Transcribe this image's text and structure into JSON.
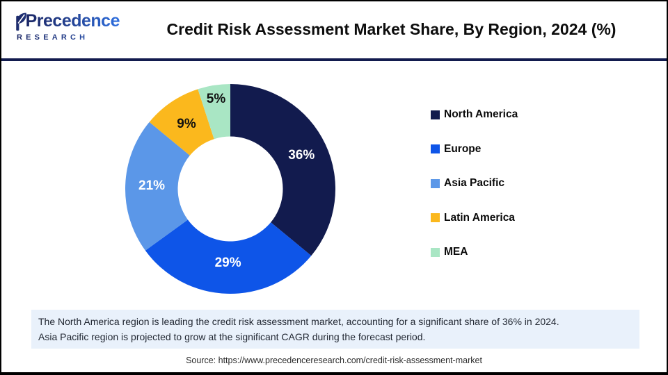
{
  "brand": {
    "name_top": "Precedence",
    "name_bottom": "RESEARCH"
  },
  "header": {
    "title": "Credit Risk Assessment Market Share, By Region, 2024 (%)"
  },
  "chart_data": {
    "type": "pie",
    "subtype": "donut",
    "title": "Credit Risk Assessment Market Share, By Region, 2024 (%)",
    "categories": [
      "North America",
      "Europe",
      "Asia Pacific",
      "Latin America",
      "MEA"
    ],
    "values": [
      36,
      29,
      21,
      9,
      5
    ],
    "unit": "%",
    "colors": [
      "#121b4e",
      "#0e55e8",
      "#5b97e8",
      "#fbb81d",
      "#a9e6c4"
    ],
    "label_colors": [
      "#ffffff",
      "#ffffff",
      "#ffffff",
      "#101010",
      "#101010"
    ],
    "label_radii": [
      113,
      107,
      113,
      112,
      131
    ],
    "start_angle_deg": 0,
    "direction": "clockwise",
    "inner_radius_ratio": 0.5,
    "legend_position": "right"
  },
  "note": {
    "line1": "The North America region is leading the credit risk assessment market, accounting for a significant share of 36% in 2024.",
    "line2": "Asia Pacific region is projected to grow at the significant CAGR during the forecast period."
  },
  "source": "Source: https://www.precedenceresearch.com/credit-risk-assessment-market",
  "theme": {
    "divider_color": "#121b4e",
    "note_bg": "#e9f1fb",
    "frame_color": "#000000"
  }
}
